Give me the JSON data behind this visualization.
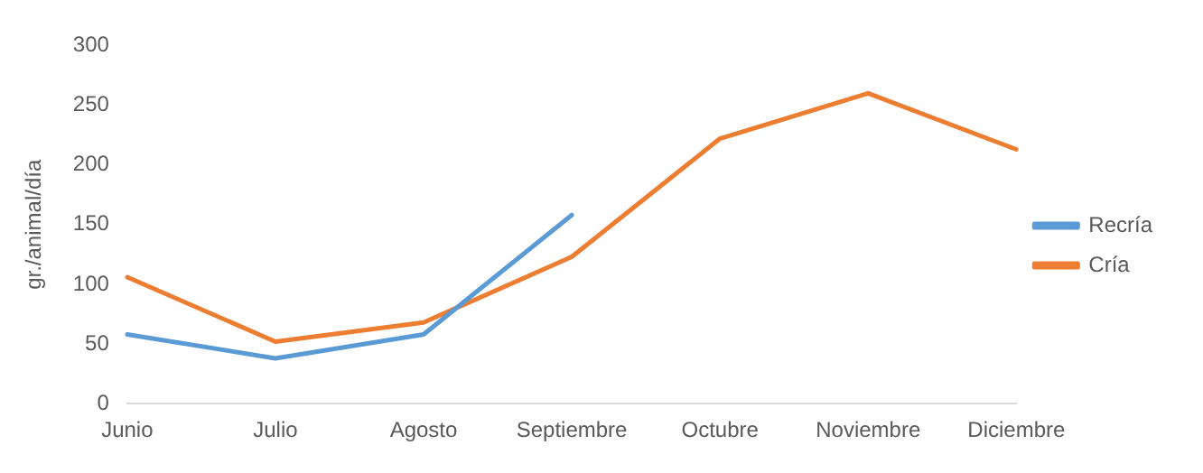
{
  "chart_data": {
    "type": "line",
    "ylabel": "gr./animal/día",
    "categories": [
      "Junio",
      "Julio",
      "Agosto",
      "Septiembre",
      "Octubre",
      "Noviembre",
      "Diciembre"
    ],
    "series": [
      {
        "name": "Recría",
        "color": "#5b9bd5",
        "values": [
          58,
          38,
          58,
          158,
          null,
          null,
          null
        ]
      },
      {
        "name": "Cría",
        "color": "#ed7d31",
        "values": [
          106,
          52,
          68,
          123,
          222,
          260,
          213
        ]
      }
    ],
    "ylim": [
      0,
      300
    ],
    "yticks": [
      0,
      50,
      100,
      150,
      200,
      250,
      300
    ],
    "grid": false,
    "legend": "right",
    "marker": "none",
    "line_style": "solid"
  }
}
